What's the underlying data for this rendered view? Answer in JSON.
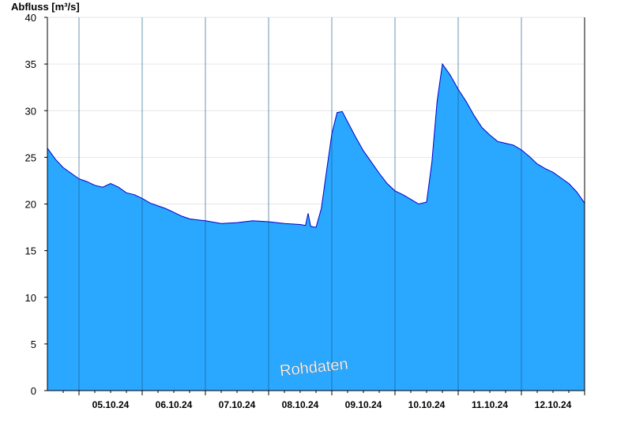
{
  "chart_data": {
    "type": "area",
    "ylabel": "Abfluss [m³/s]",
    "xlabel": "",
    "title": "",
    "watermark": "Rohdaten",
    "ylim": [
      0,
      40
    ],
    "yticks": [
      0,
      5,
      10,
      15,
      20,
      25,
      30,
      35,
      40
    ],
    "xlim": [
      "04.10.24 12:00",
      "13.10.24 00:00"
    ],
    "xtick_labels": [
      "05.10.24",
      "06.10.24",
      "07.10.24",
      "08.10.24",
      "09.10.24",
      "10.10.24",
      "11.10.24",
      "12.10.24"
    ],
    "grid": "horizontal",
    "fill_color": "#2aa7ff",
    "line_color": "#0000cc",
    "series": [
      {
        "x": [
          "04.10.24 12:00",
          "04.10.24 13:00",
          "04.10.24 15:00",
          "04.10.24 18:00",
          "04.10.24 21:00",
          "05.10.24 00:00",
          "05.10.24 03:00",
          "05.10.24 06:00",
          "05.10.24 09:00",
          "05.10.24 12:00",
          "05.10.24 15:00",
          "05.10.24 18:00",
          "05.10.24 21:00",
          "06.10.24 00:00",
          "06.10.24 03:00",
          "06.10.24 06:00",
          "06.10.24 09:00",
          "06.10.24 12:00",
          "06.10.24 15:00",
          "06.10.24 18:00",
          "06.10.24 21:00",
          "07.10.24 00:00",
          "07.10.24 06:00",
          "07.10.24 12:00",
          "07.10.24 18:00",
          "08.10.24 00:00",
          "08.10.24 06:00",
          "08.10.24 12:00",
          "08.10.24 14:00",
          "08.10.24 15:00",
          "08.10.24 16:00",
          "08.10.24 18:00",
          "08.10.24 20:00",
          "08.10.24 22:00",
          "09.10.24 00:00",
          "09.10.24 02:00",
          "09.10.24 04:00",
          "09.10.24 06:00",
          "09.10.24 09:00",
          "09.10.24 12:00",
          "09.10.24 15:00",
          "09.10.24 18:00",
          "09.10.24 21:00",
          "10.10.24 00:00",
          "10.10.24 03:00",
          "10.10.24 06:00",
          "10.10.24 09:00",
          "10.10.24 12:00",
          "10.10.24 14:00",
          "10.10.24 16:00",
          "10.10.24 18:00",
          "10.10.24 21:00",
          "11.10.24 00:00",
          "11.10.24 03:00",
          "11.10.24 06:00",
          "11.10.24 09:00",
          "11.10.24 12:00",
          "11.10.24 15:00",
          "11.10.24 18:00",
          "11.10.24 21:00",
          "12.10.24 00:00",
          "12.10.24 03:00",
          "12.10.24 06:00",
          "12.10.24 09:00",
          "12.10.24 12:00",
          "12.10.24 15:00",
          "12.10.24 18:00",
          "12.10.24 21:00",
          "13.10.24 00:00"
        ],
        "values": [
          26.0,
          25.6,
          24.8,
          23.9,
          23.3,
          22.7,
          22.4,
          22.0,
          21.8,
          22.2,
          21.8,
          21.2,
          21.0,
          20.6,
          20.1,
          19.8,
          19.5,
          19.1,
          18.7,
          18.4,
          18.3,
          18.2,
          17.9,
          18.0,
          18.2,
          18.1,
          17.9,
          17.8,
          17.7,
          19.0,
          17.6,
          17.5,
          19.5,
          23.5,
          27.5,
          29.8,
          29.9,
          28.8,
          27.2,
          25.7,
          24.5,
          23.3,
          22.2,
          21.4,
          21.0,
          20.5,
          20.0,
          20.2,
          24.5,
          31.0,
          35.0,
          33.8,
          32.3,
          31.0,
          29.5,
          28.2,
          27.4,
          26.7,
          26.5,
          26.3,
          25.8,
          25.1,
          24.3,
          23.8,
          23.4,
          22.8,
          22.2,
          21.3,
          20.1
        ]
      }
    ]
  }
}
